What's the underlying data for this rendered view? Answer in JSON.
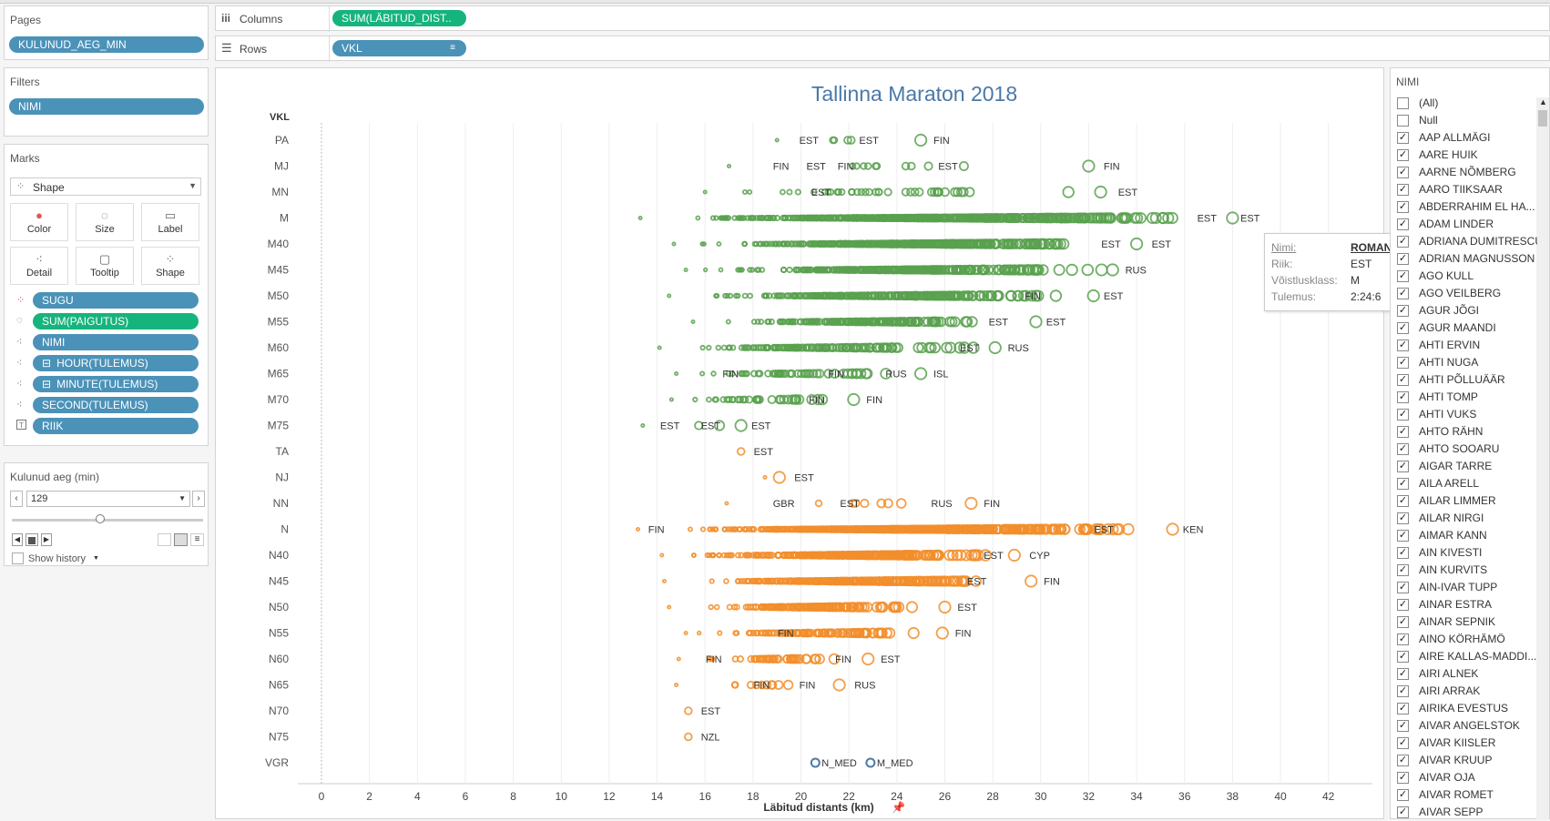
{
  "sidebar": {
    "pages": {
      "title": "Pages",
      "pill": "KULUNUD_AEG_MIN"
    },
    "filters": {
      "title": "Filters",
      "pill": "NIMI"
    },
    "marks": {
      "title": "Marks",
      "type": "Shape",
      "buttons": [
        "Color",
        "Size",
        "Label",
        "Detail",
        "Tooltip",
        "Shape"
      ],
      "fields": [
        {
          "icon": "color",
          "label": "SUGU"
        },
        {
          "icon": "size",
          "label": "SUM(PAIGUTUS)"
        },
        {
          "icon": "detail",
          "label": "NIMI"
        },
        {
          "icon": "detail",
          "label": "HOUR(TULEMUS)"
        },
        {
          "icon": "detail",
          "label": "MINUTE(TULEMUS)"
        },
        {
          "icon": "detail",
          "label": "SECOND(TULEMUS)"
        },
        {
          "icon": "text",
          "label": "RIIK"
        }
      ]
    },
    "param": {
      "title": "Kulunud aeg (min)",
      "value": "129",
      "slider_fraction": 0.46,
      "show_history": "Show history"
    }
  },
  "shelves": {
    "columns_label": "Columns",
    "columns_pill": "SUM(LÄBITUD_DIST..",
    "rows_label": "Rows",
    "rows_pill": "VKL"
  },
  "chart_data": {
    "type": "scatter",
    "title": "Tallinna Maraton 2018",
    "xlabel": "Läbitud distants (km)",
    "ylabel": "VKL",
    "xlim": [
      0,
      43
    ],
    "x_ticks": [
      0,
      2,
      4,
      6,
      8,
      10,
      12,
      14,
      16,
      18,
      20,
      22,
      24,
      26,
      28,
      30,
      32,
      34,
      36,
      38,
      40,
      42
    ],
    "categories": [
      "PA",
      "MJ",
      "MN",
      "M",
      "M40",
      "M45",
      "M50",
      "M55",
      "M60",
      "M65",
      "M70",
      "M75",
      "TA",
      "NJ",
      "NN",
      "N",
      "N40",
      "N45",
      "N50",
      "N55",
      "N60",
      "N65",
      "N70",
      "N75",
      "VGR"
    ],
    "colors": {
      "M": "#59a14f",
      "N": "#f28e2b",
      "median": "#4e79a7"
    },
    "series": [
      {
        "name": "M",
        "cat": "PA",
        "range": [
          19,
          25
        ],
        "n": 6,
        "labels": [
          {
            "x": 19.7,
            "t": "EST"
          },
          {
            "x": 22.2,
            "t": "EST"
          },
          {
            "x": 25.3,
            "t": "FIN"
          }
        ]
      },
      {
        "name": "M",
        "cat": "MJ",
        "range": [
          17,
          32
        ],
        "n": 12,
        "labels": [
          {
            "x": 18.6,
            "t": "FIN"
          },
          {
            "x": 20.0,
            "t": "EST"
          },
          {
            "x": 21.3,
            "t": "FIN"
          },
          {
            "x": 25.5,
            "t": "EST"
          },
          {
            "x": 32.4,
            "t": "FIN"
          }
        ]
      },
      {
        "name": "M",
        "cat": "MN",
        "range": [
          16,
          32.5
        ],
        "n": 40,
        "labels": [
          {
            "x": 20.2,
            "t": "EST"
          },
          {
            "x": 33,
            "t": "EST"
          }
        ]
      },
      {
        "name": "M",
        "cat": "M",
        "range": [
          13.3,
          38
        ],
        "n": 450,
        "labels": [
          {
            "x": 36.3,
            "t": "EST"
          },
          {
            "x": 38.1,
            "t": "EST"
          }
        ]
      },
      {
        "name": "M",
        "cat": "M40",
        "range": [
          14.7,
          34
        ],
        "n": 320,
        "labels": [
          {
            "x": 32.3,
            "t": "EST"
          },
          {
            "x": 34.4,
            "t": "EST"
          }
        ]
      },
      {
        "name": "M",
        "cat": "M45",
        "range": [
          15.2,
          33
        ],
        "n": 260,
        "labels": [
          {
            "x": 33.3,
            "t": "RUS"
          }
        ]
      },
      {
        "name": "M",
        "cat": "M50",
        "range": [
          14.5,
          32.2
        ],
        "n": 220,
        "labels": [
          {
            "x": 29.1,
            "t": "FIN"
          },
          {
            "x": 32.4,
            "t": "EST"
          }
        ]
      },
      {
        "name": "M",
        "cat": "M55",
        "range": [
          15.5,
          29.8
        ],
        "n": 150,
        "labels": [
          {
            "x": 27.6,
            "t": "EST"
          },
          {
            "x": 30.0,
            "t": "EST"
          }
        ]
      },
      {
        "name": "M",
        "cat": "M60",
        "range": [
          14.1,
          28.1
        ],
        "n": 120,
        "labels": [
          {
            "x": 26.4,
            "t": "EST"
          },
          {
            "x": 28.4,
            "t": "RUS"
          }
        ]
      },
      {
        "name": "M",
        "cat": "M65",
        "range": [
          14.8,
          25
        ],
        "n": 50,
        "labels": [
          {
            "x": 16.5,
            "t": "FIN"
          },
          {
            "x": 20.9,
            "t": "FIN"
          },
          {
            "x": 23.3,
            "t": "RUS"
          },
          {
            "x": 25.3,
            "t": "ISL"
          }
        ]
      },
      {
        "name": "M",
        "cat": "M70",
        "range": [
          14.6,
          22.2
        ],
        "n": 35,
        "labels": [
          {
            "x": 20.1,
            "t": "FIN"
          },
          {
            "x": 22.5,
            "t": "FIN"
          }
        ]
      },
      {
        "name": "M",
        "cat": "M75",
        "range": [
          13.4,
          17.5
        ],
        "n": 4,
        "labels": [
          {
            "x": 13.9,
            "t": "EST"
          },
          {
            "x": 15.6,
            "t": "EST"
          },
          {
            "x": 17.7,
            "t": "EST"
          }
        ]
      },
      {
        "name": "N",
        "cat": "TA",
        "range": [
          17.5,
          17.5
        ],
        "n": 1,
        "labels": [
          {
            "x": 17.8,
            "t": "EST"
          }
        ]
      },
      {
        "name": "N",
        "cat": "NJ",
        "range": [
          18.5,
          19.1
        ],
        "n": 2,
        "labels": [
          {
            "x": 19.5,
            "t": "EST"
          }
        ]
      },
      {
        "name": "N",
        "cat": "NN",
        "range": [
          16.9,
          27.1
        ],
        "n": 9,
        "labels": [
          {
            "x": 18.6,
            "t": "GBR"
          },
          {
            "x": 21.4,
            "t": "EST"
          },
          {
            "x": 25.2,
            "t": "RUS"
          },
          {
            "x": 27.4,
            "t": "FIN"
          }
        ]
      },
      {
        "name": "N",
        "cat": "N",
        "range": [
          13.2,
          35.5
        ],
        "n": 460,
        "labels": [
          {
            "x": 13.4,
            "t": "FIN"
          },
          {
            "x": 32.0,
            "t": "EST"
          },
          {
            "x": 35.7,
            "t": "KEN"
          }
        ]
      },
      {
        "name": "N",
        "cat": "N40",
        "range": [
          14.2,
          28.9
        ],
        "n": 260,
        "labels": [
          {
            "x": 27.4,
            "t": "EST"
          },
          {
            "x": 29.3,
            "t": "CYP"
          }
        ]
      },
      {
        "name": "N",
        "cat": "N45",
        "range": [
          14.3,
          29.6
        ],
        "n": 230,
        "labels": [
          {
            "x": 26.7,
            "t": "EST"
          },
          {
            "x": 29.9,
            "t": "FIN"
          }
        ]
      },
      {
        "name": "N",
        "cat": "N50",
        "range": [
          14.5,
          26
        ],
        "n": 130,
        "labels": [
          {
            "x": 26.3,
            "t": "EST"
          }
        ]
      },
      {
        "name": "N",
        "cat": "N55",
        "range": [
          15.2,
          25.9
        ],
        "n": 90,
        "labels": [
          {
            "x": 18.8,
            "t": "FIN"
          },
          {
            "x": 26.2,
            "t": "FIN"
          }
        ]
      },
      {
        "name": "N",
        "cat": "N60",
        "range": [
          14.9,
          22.8
        ],
        "n": 40,
        "labels": [
          {
            "x": 15.8,
            "t": "FIN"
          },
          {
            "x": 21.2,
            "t": "FIN"
          },
          {
            "x": 23.1,
            "t": "EST"
          }
        ]
      },
      {
        "name": "N",
        "cat": "N65",
        "range": [
          14.8,
          21.6
        ],
        "n": 12,
        "labels": [
          {
            "x": 17.8,
            "t": "FIN"
          },
          {
            "x": 19.7,
            "t": "FIN"
          },
          {
            "x": 22.0,
            "t": "RUS"
          }
        ]
      },
      {
        "name": "N",
        "cat": "N70",
        "range": [
          15.3,
          15.3
        ],
        "n": 1,
        "labels": [
          {
            "x": 15.6,
            "t": "EST"
          }
        ]
      },
      {
        "name": "N",
        "cat": "N75",
        "range": [
          15.3,
          15.3
        ],
        "n": 1,
        "labels": [
          {
            "x": 15.6,
            "t": "NZL"
          }
        ]
      }
    ],
    "median_points": [
      {
        "cat": "VGR",
        "x": 20.6,
        "label": "N_MED"
      },
      {
        "cat": "VGR",
        "x": 22.9,
        "label": "M_MED"
      }
    ]
  },
  "tooltip": {
    "rows": [
      {
        "k": "Nimi:",
        "v": "ROMAN FOSTI"
      },
      {
        "k": "Riik:",
        "v": "EST"
      },
      {
        "k": "Võistlusklass:",
        "v": "M"
      },
      {
        "k": "Tulemus:",
        "v": "2:24:6"
      }
    ]
  },
  "name_filter": {
    "title": "NIMI",
    "items": [
      {
        "label": "(All)",
        "checked": false
      },
      {
        "label": "Null",
        "checked": false
      },
      {
        "label": "AAP ALLMÄGI",
        "checked": true
      },
      {
        "label": "AARE HUIK",
        "checked": true
      },
      {
        "label": "AARNE NÕMBERG",
        "checked": true
      },
      {
        "label": "AARO TIIKSAAR",
        "checked": true
      },
      {
        "label": "ABDERRAHIM EL HA...",
        "checked": true
      },
      {
        "label": "ADAM LINDER",
        "checked": true
      },
      {
        "label": "ADRIANA DUMITRESCU",
        "checked": true
      },
      {
        "label": "ADRIAN MAGNUSSON",
        "checked": true
      },
      {
        "label": "AGO KULL",
        "checked": true
      },
      {
        "label": "AGO VEILBERG",
        "checked": true
      },
      {
        "label": "AGUR JÕGI",
        "checked": true
      },
      {
        "label": "AGUR MAANDI",
        "checked": true
      },
      {
        "label": "AHTI ERVIN",
        "checked": true
      },
      {
        "label": "AHTI NUGA",
        "checked": true
      },
      {
        "label": "AHTI PÕLLUÄÄR",
        "checked": true
      },
      {
        "label": "AHTI TOMP",
        "checked": true
      },
      {
        "label": "AHTI VUKS",
        "checked": true
      },
      {
        "label": "AHTO RÄHN",
        "checked": true
      },
      {
        "label": "AHTO SOOARU",
        "checked": true
      },
      {
        "label": "AIGAR TARRE",
        "checked": true
      },
      {
        "label": "AILA ARELL",
        "checked": true
      },
      {
        "label": "AILAR LIMMER",
        "checked": true
      },
      {
        "label": "AILAR NIRGI",
        "checked": true
      },
      {
        "label": "AIMAR KANN",
        "checked": true
      },
      {
        "label": "AIN KIVESTI",
        "checked": true
      },
      {
        "label": "AIN KURVITS",
        "checked": true
      },
      {
        "label": "AIN-IVAR TUPP",
        "checked": true
      },
      {
        "label": "AINAR ESTRA",
        "checked": true
      },
      {
        "label": "AINAR SEPNIK",
        "checked": true
      },
      {
        "label": "AINO KÖRHÄMÖ",
        "checked": true
      },
      {
        "label": "AIRE KALLAS-MADDI...",
        "checked": true
      },
      {
        "label": "AIRI ALNEK",
        "checked": true
      },
      {
        "label": "AIRI ARRAK",
        "checked": true
      },
      {
        "label": "AIRIKA EVESTUS",
        "checked": true
      },
      {
        "label": "AIVAR ANGELSTOK",
        "checked": true
      },
      {
        "label": "AIVAR KIISLER",
        "checked": true
      },
      {
        "label": "AIVAR KRUUP",
        "checked": true
      },
      {
        "label": "AIVAR OJA",
        "checked": true
      },
      {
        "label": "AIVAR ROMET",
        "checked": true
      },
      {
        "label": "AIVAR SEPP",
        "checked": true
      }
    ]
  }
}
